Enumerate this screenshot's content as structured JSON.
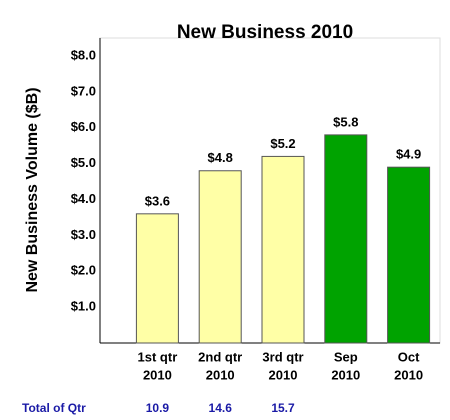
{
  "chart_data": {
    "type": "bar",
    "title": "New Business 2010",
    "y_label": "New Business Volume ($B)",
    "categories": [
      [
        "1st qtr",
        "2010"
      ],
      [
        "2nd qtr",
        "2010"
      ],
      [
        "3rd qtr",
        "2010"
      ],
      [
        "Sep",
        "2010"
      ],
      [
        "Oct",
        "2010"
      ]
    ],
    "values": [
      3.6,
      4.8,
      5.2,
      5.8,
      4.9
    ],
    "value_labels": [
      "$3.6",
      "$4.8",
      "$5.2",
      "$5.8",
      "$4.9"
    ],
    "colors": [
      "#ffffa6",
      "#ffffa6",
      "#ffffa6",
      "#00a300",
      "#00a300"
    ],
    "ylim": [
      0,
      8.5
    ],
    "yticks": [
      {
        "value": 1,
        "label": "$1.0"
      },
      {
        "value": 2,
        "label": "$2.0"
      },
      {
        "value": 3,
        "label": "$3.0"
      },
      {
        "value": 4,
        "label": "$4.0"
      },
      {
        "value": 5,
        "label": "$5.0"
      },
      {
        "value": 6,
        "label": "$6.0"
      },
      {
        "value": 7,
        "label": "$7.0"
      },
      {
        "value": 8,
        "label": "$8.0"
      }
    ],
    "totals": {
      "label": "Total of Qtr",
      "values": [
        10.9,
        14.6,
        15.7
      ]
    }
  }
}
